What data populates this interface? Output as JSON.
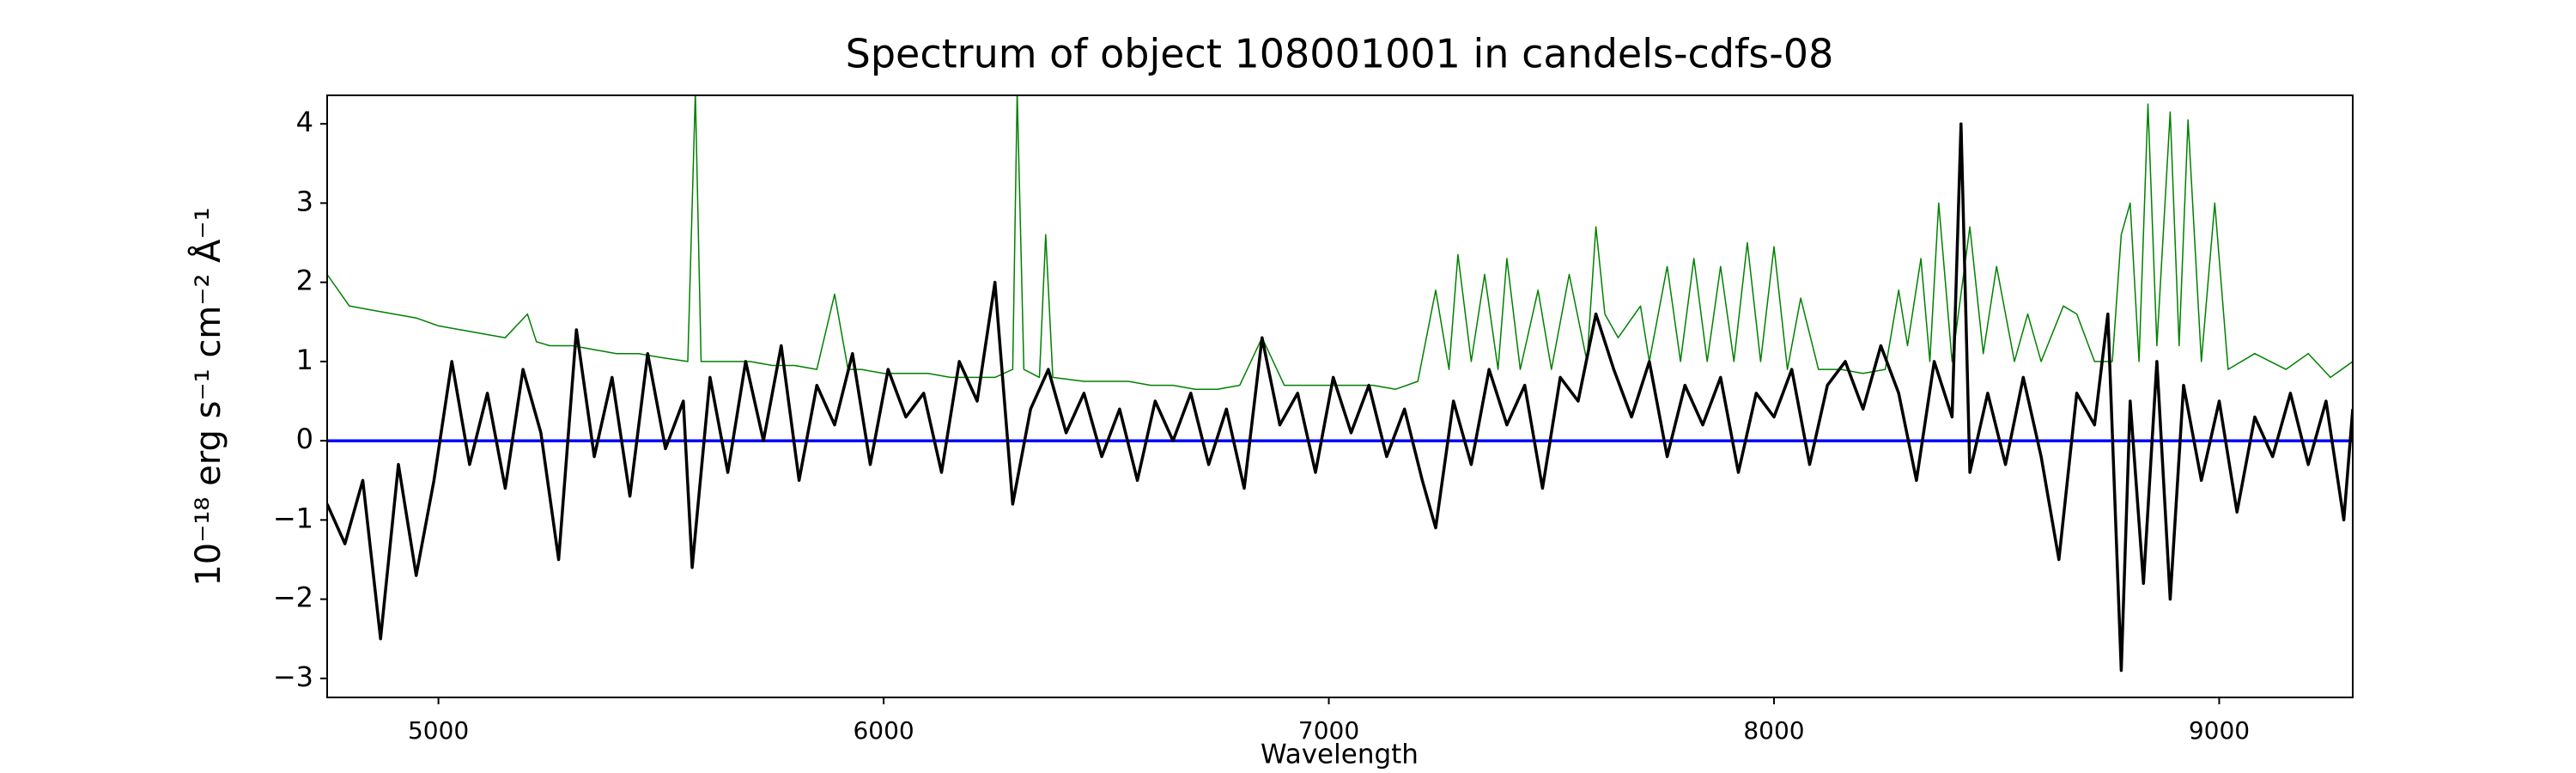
{
  "chart_data": {
    "type": "line",
    "title": "Spectrum of object 108001001 in candels-cdfs-08",
    "x_label": "Wavelength",
    "y_label": "10⁻¹⁸ erg s⁻¹ cm⁻² Å⁻¹",
    "xlim": [
      4750,
      9300
    ],
    "ylim": [
      -3.24,
      4.36
    ],
    "xticks": [
      5000,
      6000,
      7000,
      8000,
      9000
    ],
    "yticks": [
      {
        "value": -3,
        "label": "−3"
      },
      {
        "value": -2,
        "label": "−2"
      },
      {
        "value": -1,
        "label": "−1"
      },
      0,
      1,
      2,
      3,
      4
    ],
    "series": [
      {
        "color": "#008000",
        "x": [
          4750,
          4800,
          4850,
          4900,
          4950,
          5000,
          5050,
          5100,
          5150,
          5200,
          5220,
          5250,
          5300,
          5350,
          5400,
          5450,
          5500,
          5560,
          5577,
          5590,
          5650,
          5700,
          5750,
          5800,
          5850,
          5890,
          5920,
          5950,
          6000,
          6050,
          6100,
          6150,
          6200,
          6250,
          6290,
          6300,
          6315,
          6350,
          6364,
          6380,
          6450,
          6500,
          6550,
          6600,
          6650,
          6700,
          6750,
          6800,
          6850,
          6900,
          6950,
          7000,
          7050,
          7100,
          7150,
          7200,
          7240,
          7270,
          7290,
          7320,
          7350,
          7380,
          7400,
          7430,
          7470,
          7500,
          7540,
          7580,
          7600,
          7620,
          7650,
          7700,
          7720,
          7760,
          7790,
          7820,
          7850,
          7880,
          7910,
          7940,
          7970,
          8000,
          8030,
          8060,
          8100,
          8150,
          8200,
          8250,
          8280,
          8300,
          8330,
          8350,
          8370,
          8400,
          8440,
          8470,
          8500,
          8540,
          8570,
          8600,
          8650,
          8680,
          8720,
          8760,
          8780,
          8800,
          8820,
          8840,
          8860,
          8890,
          8910,
          8930,
          8960,
          8990,
          9020,
          9080,
          9150,
          9200,
          9250,
          9300
        ],
        "values": [
          2.1,
          1.7,
          1.65,
          1.6,
          1.55,
          1.45,
          1.4,
          1.35,
          1.3,
          1.6,
          1.25,
          1.2,
          1.2,
          1.15,
          1.1,
          1.1,
          1.05,
          1.0,
          4.4,
          1.0,
          1.0,
          1.0,
          0.95,
          0.95,
          0.9,
          1.85,
          0.9,
          0.9,
          0.85,
          0.85,
          0.85,
          0.8,
          0.8,
          0.8,
          0.9,
          4.4,
          0.9,
          0.8,
          2.6,
          0.8,
          0.75,
          0.75,
          0.75,
          0.7,
          0.7,
          0.65,
          0.65,
          0.7,
          1.3,
          0.7,
          0.7,
          0.7,
          0.7,
          0.7,
          0.65,
          0.75,
          1.9,
          0.9,
          2.35,
          1.0,
          2.1,
          0.9,
          2.3,
          0.9,
          1.9,
          0.9,
          2.1,
          1.0,
          2.7,
          1.6,
          1.3,
          1.7,
          1.0,
          2.2,
          1.0,
          2.3,
          1.0,
          2.2,
          1.0,
          2.5,
          1.0,
          2.45,
          0.9,
          1.8,
          0.9,
          0.9,
          0.85,
          0.9,
          1.9,
          1.2,
          2.3,
          1.0,
          3.0,
          1.0,
          2.7,
          1.1,
          2.2,
          1.0,
          1.6,
          1.0,
          1.7,
          1.6,
          1.0,
          1.0,
          2.6,
          3.0,
          1.0,
          4.25,
          1.2,
          4.15,
          1.2,
          4.05,
          1.0,
          3.0,
          0.9,
          1.1,
          0.9,
          1.1,
          0.8,
          1.0
        ]
      },
      {
        "color": "#0000ff",
        "x": [
          4750,
          9300
        ],
        "values": [
          0,
          0
        ]
      },
      {
        "color": "#000000",
        "x": [
          4750,
          4790,
          4830,
          4870,
          4910,
          4950,
          4990,
          5030,
          5070,
          5110,
          5150,
          5190,
          5230,
          5270,
          5310,
          5350,
          5390,
          5430,
          5470,
          5510,
          5550,
          5570,
          5610,
          5650,
          5690,
          5730,
          5770,
          5810,
          5850,
          5890,
          5930,
          5970,
          6010,
          6050,
          6090,
          6130,
          6170,
          6210,
          6250,
          6290,
          6330,
          6370,
          6410,
          6450,
          6490,
          6530,
          6570,
          6610,
          6650,
          6690,
          6730,
          6770,
          6810,
          6850,
          6890,
          6930,
          6970,
          7010,
          7050,
          7090,
          7130,
          7170,
          7210,
          7240,
          7280,
          7320,
          7360,
          7400,
          7440,
          7480,
          7520,
          7560,
          7600,
          7640,
          7680,
          7720,
          7760,
          7800,
          7840,
          7880,
          7920,
          7960,
          8000,
          8040,
          8080,
          8120,
          8160,
          8200,
          8240,
          8280,
          8320,
          8360,
          8400,
          8420,
          8440,
          8480,
          8520,
          8560,
          8600,
          8640,
          8680,
          8720,
          8750,
          8780,
          8800,
          8830,
          8860,
          8890,
          8920,
          8960,
          9000,
          9040,
          9080,
          9120,
          9160,
          9200,
          9240,
          9280,
          9300
        ],
        "values": [
          -0.8,
          -1.3,
          -0.5,
          -2.5,
          -0.3,
          -1.7,
          -0.5,
          1.0,
          -0.3,
          0.6,
          -0.6,
          0.9,
          0.1,
          -1.5,
          1.4,
          -0.2,
          0.8,
          -0.7,
          1.1,
          -0.1,
          0.5,
          -1.6,
          0.8,
          -0.4,
          1.0,
          0.0,
          1.2,
          -0.5,
          0.7,
          0.2,
          1.1,
          -0.3,
          0.9,
          0.3,
          0.6,
          -0.4,
          1.0,
          0.5,
          2.0,
          -0.8,
          0.4,
          0.9,
          0.1,
          0.6,
          -0.2,
          0.4,
          -0.5,
          0.5,
          0.0,
          0.6,
          -0.3,
          0.4,
          -0.6,
          1.3,
          0.2,
          0.6,
          -0.4,
          0.8,
          0.1,
          0.7,
          -0.2,
          0.4,
          -0.5,
          -1.1,
          0.5,
          -0.3,
          0.9,
          0.2,
          0.7,
          -0.6,
          0.8,
          0.5,
          1.6,
          0.9,
          0.3,
          1.0,
          -0.2,
          0.7,
          0.2,
          0.8,
          -0.4,
          0.6,
          0.3,
          0.9,
          -0.3,
          0.7,
          1.0,
          0.4,
          1.2,
          0.6,
          -0.5,
          1.0,
          0.3,
          4.0,
          -0.4,
          0.6,
          -0.3,
          0.8,
          -0.2,
          -1.5,
          0.6,
          0.2,
          1.6,
          -2.9,
          0.5,
          -1.8,
          1.0,
          -2.0,
          0.7,
          -0.5,
          0.5,
          -0.9,
          0.3,
          -0.2,
          0.6,
          -0.3,
          0.5,
          -1.0,
          0.4
        ]
      }
    ]
  }
}
